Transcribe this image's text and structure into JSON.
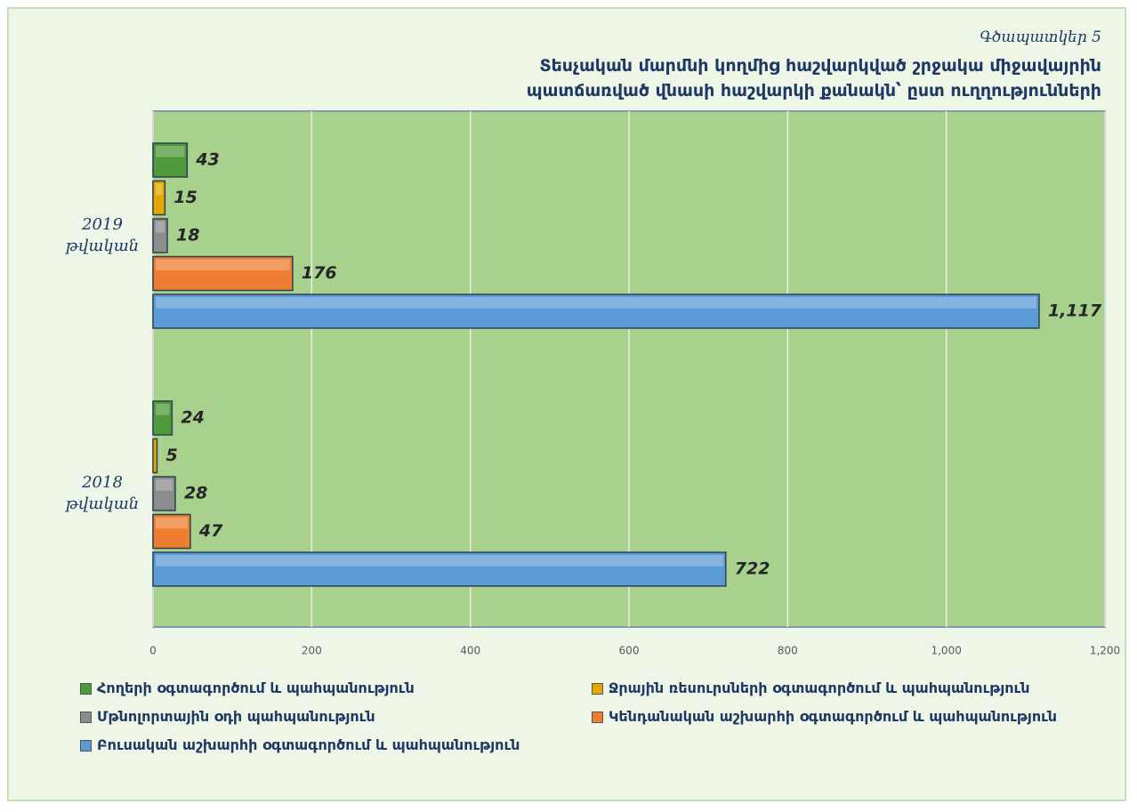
{
  "chart_data": {
    "type": "hbar",
    "subtitle": "Գծապատկեր 5",
    "title": "Տեսչական մարմնի կողմից հաշվարկված շրջակա միջավայրին պատճառված վնասի հաշվարկի քանակն՝ ըստ ուղղությունների",
    "categories": [
      "2019 թվական",
      "2018 թվական"
    ],
    "series": [
      {
        "name": "Հողերի օգտագործում և պահպանություն",
        "color": "#4e9a3a",
        "values": [
          43,
          24
        ]
      },
      {
        "name": "Ջրային ռեսուրսների օգտագործում և պահպանություն",
        "color": "#e3a900",
        "values": [
          15,
          5
        ]
      },
      {
        "name": "Մթնոլորտային օդի պահպանություն",
        "color": "#8c8c8c",
        "values": [
          18,
          28
        ]
      },
      {
        "name": "Կենդանական աշխարհի օգտագործում և պահպանություն",
        "color": "#ed7d31",
        "values": [
          176,
          47
        ]
      },
      {
        "name": "Բուսական աշխարհի օգտագործում և պահպանություն",
        "color": "#5b9bd5",
        "values": [
          1117,
          722
        ],
        "value_labels": [
          "1,117",
          "722"
        ]
      }
    ],
    "xlim": [
      0,
      1200
    ],
    "xticks": [
      0,
      200,
      400,
      600,
      800,
      {
        "value": 1000,
        "label": "1,000"
      },
      {
        "value": 1200,
        "label": "1,200"
      }
    ],
    "grid": true,
    "legend": "bottom"
  }
}
